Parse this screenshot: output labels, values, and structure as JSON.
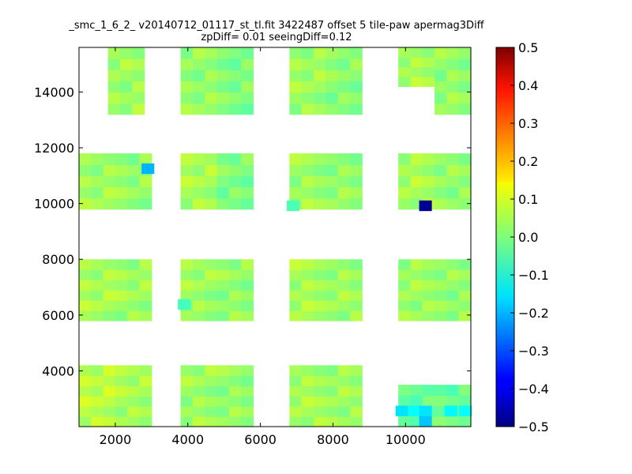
{
  "chart_data": {
    "type": "heatmap",
    "title_lines": [
      "_smc_1_6_2_ v20140712_01117_st_tl.fit 3422487 offset 5 tile-paw apermag3Diff",
      "zpDiff= 0.01 seeingDiff=0.12"
    ],
    "xlabel": "",
    "ylabel": "",
    "xlim": [
      1000,
      11800
    ],
    "ylim": [
      2000,
      15600
    ],
    "x_ticks": [
      2000,
      4000,
      6000,
      8000,
      10000
    ],
    "y_ticks": [
      4000,
      6000,
      8000,
      10000,
      12000,
      14000
    ],
    "cell_size": [
      1000,
      440
    ],
    "colorbar": {
      "colormap": "jet",
      "vmin": -0.5,
      "vmax": 0.5,
      "ticks": [
        0.5,
        0.4,
        0.3,
        0.2,
        0.1,
        0.0,
        -0.1,
        -0.2,
        -0.3,
        -0.4,
        -0.5
      ],
      "tick_labels": [
        "0.5",
        "0.4",
        "0.3",
        "0.2",
        "0.1",
        "0.0",
        "−0.1",
        "−0.2",
        "−0.3",
        "−0.4",
        "−0.5"
      ]
    },
    "blocks": [
      {
        "x": [
          1000,
          2000
        ],
        "y": [
          2000,
          4200
        ],
        "value": 0.06
      },
      {
        "x": [
          2000,
          3000
        ],
        "y": [
          2000,
          4200
        ],
        "value": 0.04
      },
      {
        "x": [
          3800,
          4800
        ],
        "y": [
          2000,
          4200
        ],
        "value": 0.03
      },
      {
        "x": [
          4800,
          5800
        ],
        "y": [
          2000,
          4200
        ],
        "value": 0.02
      },
      {
        "x": [
          6800,
          7800
        ],
        "y": [
          2000,
          4200
        ],
        "value": 0.04
      },
      {
        "x": [
          7800,
          8800
        ],
        "y": [
          2000,
          4200
        ],
        "value": 0.03
      },
      {
        "x": [
          9800,
          10800
        ],
        "y": [
          2000,
          3500
        ],
        "value": -0.02
      },
      {
        "x": [
          10800,
          11800
        ],
        "y": [
          2000,
          3500
        ],
        "value": -0.02
      },
      {
        "x": [
          1000,
          2000
        ],
        "y": [
          5800,
          8000
        ],
        "value": 0.04
      },
      {
        "x": [
          2000,
          3000
        ],
        "y": [
          5800,
          8000
        ],
        "value": 0.03
      },
      {
        "x": [
          3800,
          4800
        ],
        "y": [
          5800,
          8000
        ],
        "value": 0.03
      },
      {
        "x": [
          4800,
          5800
        ],
        "y": [
          5800,
          8000
        ],
        "value": 0.02
      },
      {
        "x": [
          6800,
          7800
        ],
        "y": [
          5800,
          8000
        ],
        "value": 0.04
      },
      {
        "x": [
          7800,
          8800
        ],
        "y": [
          5800,
          8000
        ],
        "value": 0.03
      },
      {
        "x": [
          9800,
          10800
        ],
        "y": [
          5800,
          8000
        ],
        "value": 0.03
      },
      {
        "x": [
          10800,
          11800
        ],
        "y": [
          5800,
          8000
        ],
        "value": 0.02
      },
      {
        "x": [
          1000,
          2000
        ],
        "y": [
          9800,
          11800
        ],
        "value": 0.03
      },
      {
        "x": [
          2000,
          3000
        ],
        "y": [
          9800,
          11800
        ],
        "value": 0.02
      },
      {
        "x": [
          3800,
          4800
        ],
        "y": [
          9800,
          11800
        ],
        "value": 0.04
      },
      {
        "x": [
          4800,
          5800
        ],
        "y": [
          9800,
          11800
        ],
        "value": 0.0
      },
      {
        "x": [
          6800,
          7800
        ],
        "y": [
          9800,
          11800
        ],
        "value": 0.03
      },
      {
        "x": [
          7800,
          8800
        ],
        "y": [
          9800,
          11800
        ],
        "value": 0.02
      },
      {
        "x": [
          9800,
          10800
        ],
        "y": [
          9800,
          11800
        ],
        "value": 0.04
      },
      {
        "x": [
          10800,
          11800
        ],
        "y": [
          9800,
          11800
        ],
        "value": 0.02
      },
      {
        "x": [
          1800,
          2800
        ],
        "y": [
          13200,
          15600
        ],
        "value": 0.03
      },
      {
        "x": [
          3800,
          4800
        ],
        "y": [
          13200,
          15600
        ],
        "value": 0.02
      },
      {
        "x": [
          4800,
          5800
        ],
        "y": [
          13200,
          15600
        ],
        "value": 0.0
      },
      {
        "x": [
          6800,
          7800
        ],
        "y": [
          13200,
          15600
        ],
        "value": 0.03
      },
      {
        "x": [
          7800,
          8800
        ],
        "y": [
          13200,
          15600
        ],
        "value": 0.01
      },
      {
        "x": [
          9800,
          10800
        ],
        "y": [
          14200,
          15600
        ],
        "value": 0.04
      },
      {
        "x": [
          10800,
          11800
        ],
        "y": [
          13200,
          15600
        ],
        "value": 0.02
      }
    ],
    "highlight_cells": [
      {
        "x": 2900,
        "y": 11250,
        "value": -0.2
      },
      {
        "x": 10550,
        "y": 9920,
        "value": -0.48
      },
      {
        "x": 6900,
        "y": 9920,
        "value": -0.05
      },
      {
        "x": 3900,
        "y": 6380,
        "value": -0.06
      },
      {
        "x": 9900,
        "y": 2560,
        "value": -0.15
      },
      {
        "x": 10250,
        "y": 2560,
        "value": -0.12
      },
      {
        "x": 10550,
        "y": 2560,
        "value": -0.15
      },
      {
        "x": 10550,
        "y": 2180,
        "value": -0.18
      },
      {
        "x": 11250,
        "y": 2560,
        "value": -0.13
      },
      {
        "x": 11650,
        "y": 2560,
        "value": -0.12
      }
    ]
  }
}
